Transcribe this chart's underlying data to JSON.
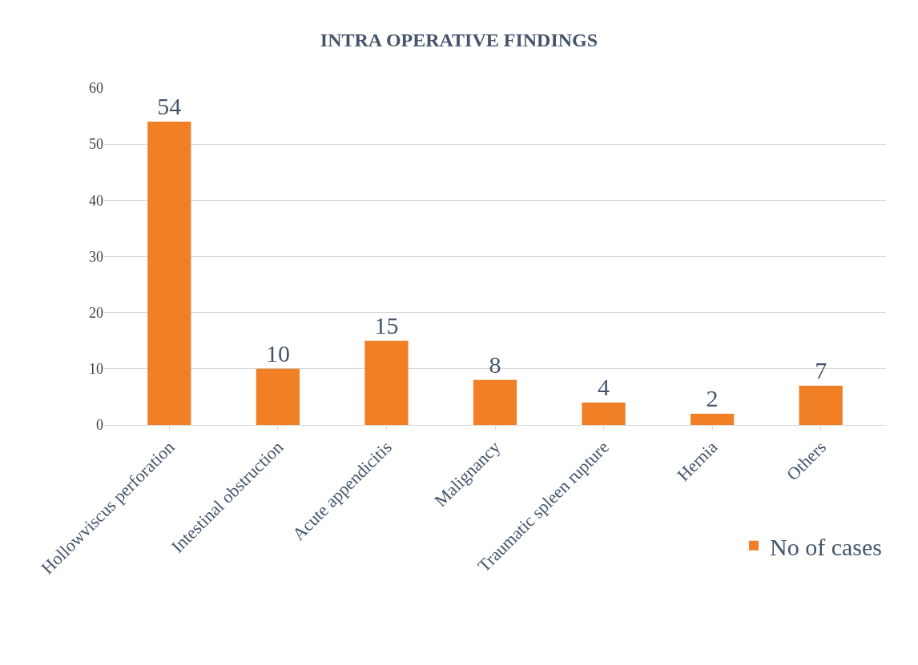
{
  "chart_data": {
    "type": "bar",
    "title": "INTRA OPERATIVE FINDINGS",
    "categories": [
      "Hollowviscus perforation",
      "Intestinal obstruction",
      "Acute appendicitis",
      "Malignancy",
      "Traumatic spleen rupture",
      "Hernia",
      "Others"
    ],
    "series": [
      {
        "name": "No of cases",
        "color": "#f07f26",
        "values": [
          54,
          10,
          15,
          8,
          4,
          2,
          7
        ]
      }
    ],
    "ylim": [
      0,
      60
    ],
    "yticks": [
      0,
      10,
      20,
      30,
      40,
      50,
      60
    ],
    "grid": "y",
    "legend": "bottom right",
    "data_labels": true
  }
}
